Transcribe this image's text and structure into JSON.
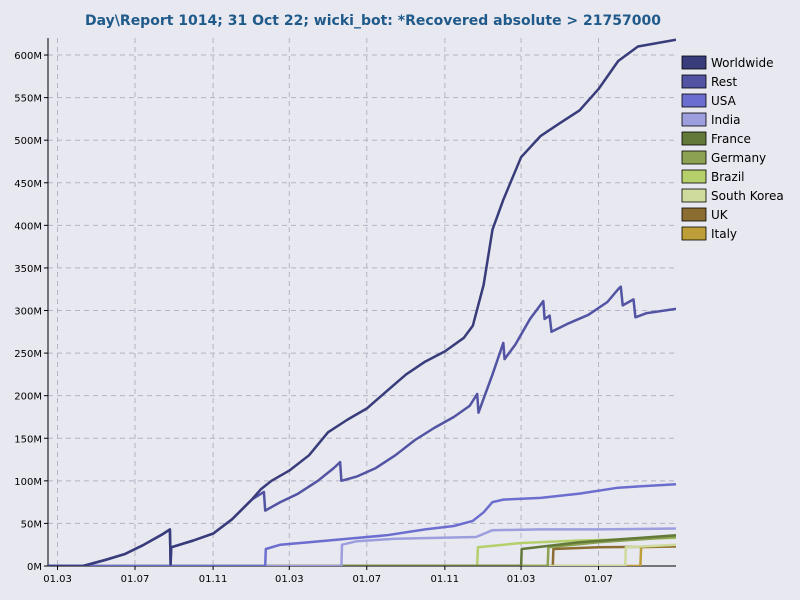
{
  "chart_data": {
    "type": "line",
    "title": "Day\\Report 1014; 31 Oct 22; wicki_bot: *Recovered absolute > 21757000",
    "xlabel": "",
    "ylabel": "",
    "ylim": [
      0,
      620000000
    ],
    "xlim": [
      "2020-02-15",
      "2022-10-31"
    ],
    "grid": true,
    "legend_position": "right",
    "x_tick_labels": [
      "01.03",
      "01.07",
      "01.11",
      "01.03",
      "01.07",
      "01.11",
      "01.03",
      "01.07"
    ],
    "x_tick_dates": [
      "2020-03-01",
      "2020-07-01",
      "2020-11-01",
      "2021-03-01",
      "2021-07-01",
      "2021-11-01",
      "2022-03-01",
      "2022-07-01"
    ],
    "y_tick_labels": [
      "0M",
      "50M",
      "100M",
      "150M",
      "200M",
      "250M",
      "300M",
      "350M",
      "400M",
      "450M",
      "500M",
      "550M",
      "600M"
    ],
    "y_tick_values": [
      0,
      50000000,
      100000000,
      150000000,
      200000000,
      250000000,
      300000000,
      350000000,
      400000000,
      450000000,
      500000000,
      550000000,
      600000000
    ],
    "series": [
      {
        "name": "Worldwide",
        "color": "#383c7a",
        "points": [
          [
            "2020-02-15",
            0
          ],
          [
            "2020-04-10",
            0
          ],
          [
            "2020-05-15",
            7
          ],
          [
            "2020-06-15",
            14
          ],
          [
            "2020-07-15",
            25
          ],
          [
            "2020-08-15",
            38
          ],
          [
            "2020-08-25",
            43
          ],
          [
            "2020-08-26",
            2
          ],
          [
            "2020-08-27",
            22
          ],
          [
            "2020-10-01",
            30
          ],
          [
            "2020-11-01",
            38
          ],
          [
            "2020-12-01",
            55
          ],
          [
            "2021-01-01",
            78
          ],
          [
            "2021-01-15",
            90
          ],
          [
            "2021-02-01",
            100
          ],
          [
            "2021-03-01",
            112
          ],
          [
            "2021-04-01",
            130
          ],
          [
            "2021-05-01",
            157
          ],
          [
            "2021-06-01",
            172
          ],
          [
            "2021-07-01",
            185
          ],
          [
            "2021-08-01",
            205
          ],
          [
            "2021-09-01",
            225
          ],
          [
            "2021-10-01",
            240
          ],
          [
            "2021-11-01",
            252
          ],
          [
            "2021-12-01",
            268
          ],
          [
            "2021-12-15",
            282
          ],
          [
            "2022-01-01",
            330
          ],
          [
            "2022-01-15",
            395
          ],
          [
            "2022-02-01",
            430
          ],
          [
            "2022-03-01",
            480
          ],
          [
            "2022-04-01",
            505
          ],
          [
            "2022-05-01",
            520
          ],
          [
            "2022-06-01",
            535
          ],
          [
            "2022-07-01",
            560
          ],
          [
            "2022-08-01",
            593
          ],
          [
            "2022-09-01",
            610
          ],
          [
            "2022-10-31",
            618
          ]
        ]
      },
      {
        "name": "Rest",
        "color": "#5254a3",
        "points": [
          [
            "2020-02-15",
            0
          ],
          [
            "2020-04-10",
            0
          ],
          [
            "2020-05-15",
            7
          ],
          [
            "2020-06-15",
            14
          ],
          [
            "2020-07-15",
            25
          ],
          [
            "2020-08-15",
            38
          ],
          [
            "2020-08-25",
            43
          ],
          [
            "2020-08-26",
            2
          ],
          [
            "2020-08-27",
            22
          ],
          [
            "2020-10-01",
            30
          ],
          [
            "2020-11-01",
            38
          ],
          [
            "2020-12-01",
            55
          ],
          [
            "2021-01-01",
            78
          ],
          [
            "2021-01-20",
            87
          ],
          [
            "2021-01-22",
            65
          ],
          [
            "2021-02-15",
            75
          ],
          [
            "2021-03-15",
            85
          ],
          [
            "2021-04-15",
            100
          ],
          [
            "2021-05-10",
            115
          ],
          [
            "2021-05-20",
            122
          ],
          [
            "2021-05-22",
            100
          ],
          [
            "2021-06-15",
            105
          ],
          [
            "2021-07-15",
            115
          ],
          [
            "2021-08-15",
            130
          ],
          [
            "2021-09-15",
            148
          ],
          [
            "2021-10-15",
            162
          ],
          [
            "2021-11-15",
            175
          ],
          [
            "2021-12-10",
            188
          ],
          [
            "2021-12-22",
            202
          ],
          [
            "2021-12-24",
            180
          ],
          [
            "2022-01-15",
            225
          ],
          [
            "2022-02-01",
            262
          ],
          [
            "2022-02-03",
            243
          ],
          [
            "2022-02-20",
            260
          ],
          [
            "2022-03-15",
            290
          ],
          [
            "2022-04-01",
            307
          ],
          [
            "2022-04-05",
            311
          ],
          [
            "2022-04-07",
            290
          ],
          [
            "2022-04-15",
            294
          ],
          [
            "2022-04-18",
            275
          ],
          [
            "2022-05-15",
            285
          ],
          [
            "2022-06-15",
            295
          ],
          [
            "2022-07-15",
            310
          ],
          [
            "2022-08-01",
            325
          ],
          [
            "2022-08-05",
            328
          ],
          [
            "2022-08-08",
            306
          ],
          [
            "2022-08-25",
            313
          ],
          [
            "2022-08-28",
            292
          ],
          [
            "2022-09-15",
            297
          ],
          [
            "2022-10-31",
            302
          ]
        ]
      },
      {
        "name": "USA",
        "color": "#6b6ecf",
        "points": [
          [
            "2020-02-15",
            0
          ],
          [
            "2021-01-22",
            0
          ],
          [
            "2021-01-23",
            20
          ],
          [
            "2021-02-15",
            25
          ],
          [
            "2021-04-01",
            28
          ],
          [
            "2021-06-01",
            32
          ],
          [
            "2021-08-01",
            36
          ],
          [
            "2021-10-01",
            43
          ],
          [
            "2021-11-15",
            47
          ],
          [
            "2021-12-15",
            53
          ],
          [
            "2022-01-01",
            63
          ],
          [
            "2022-01-15",
            75
          ],
          [
            "2022-02-01",
            78
          ],
          [
            "2022-04-01",
            80
          ],
          [
            "2022-06-01",
            85
          ],
          [
            "2022-08-01",
            92
          ],
          [
            "2022-10-31",
            96
          ]
        ]
      },
      {
        "name": "India",
        "color": "#9c9ede",
        "points": [
          [
            "2020-02-15",
            0
          ],
          [
            "2021-05-22",
            0
          ],
          [
            "2021-05-23",
            25
          ],
          [
            "2021-06-15",
            29
          ],
          [
            "2021-08-15",
            32
          ],
          [
            "2021-12-20",
            34
          ],
          [
            "2022-01-15",
            42
          ],
          [
            "2022-04-01",
            43
          ],
          [
            "2022-07-01",
            43
          ],
          [
            "2022-10-31",
            44
          ]
        ]
      },
      {
        "name": "France",
        "color": "#637939",
        "points": [
          [
            "2020-02-15",
            0
          ],
          [
            "2022-03-01",
            0
          ],
          [
            "2022-03-02",
            20
          ],
          [
            "2022-06-01",
            28
          ],
          [
            "2022-10-31",
            36
          ]
        ]
      },
      {
        "name": "Germany",
        "color": "#8ca252",
        "points": [
          [
            "2020-02-15",
            0
          ],
          [
            "2022-04-12",
            0
          ],
          [
            "2022-04-13",
            22
          ],
          [
            "2022-07-01",
            28
          ],
          [
            "2022-10-31",
            34
          ]
        ]
      },
      {
        "name": "Brazil",
        "color": "#b5cf6b",
        "points": [
          [
            "2020-02-15",
            0
          ],
          [
            "2021-12-22",
            0
          ],
          [
            "2021-12-23",
            22
          ],
          [
            "2022-03-01",
            27
          ],
          [
            "2022-06-01",
            30
          ],
          [
            "2022-10-31",
            33
          ]
        ]
      },
      {
        "name": "South Korea",
        "color": "#cedb9c",
        "points": [
          [
            "2020-02-15",
            0
          ],
          [
            "2022-08-12",
            0
          ],
          [
            "2022-08-13",
            22
          ],
          [
            "2022-10-31",
            25
          ]
        ]
      },
      {
        "name": "UK",
        "color": "#8c6d31",
        "points": [
          [
            "2020-02-15",
            0
          ],
          [
            "2022-04-20",
            0
          ],
          [
            "2022-04-21",
            20
          ],
          [
            "2022-07-01",
            22
          ],
          [
            "2022-10-31",
            23
          ]
        ]
      },
      {
        "name": "Italy",
        "color": "#bd9e39",
        "points": [
          [
            "2020-02-15",
            0
          ],
          [
            "2022-09-05",
            0
          ],
          [
            "2022-09-06",
            22
          ],
          [
            "2022-10-31",
            23
          ]
        ]
      }
    ]
  }
}
